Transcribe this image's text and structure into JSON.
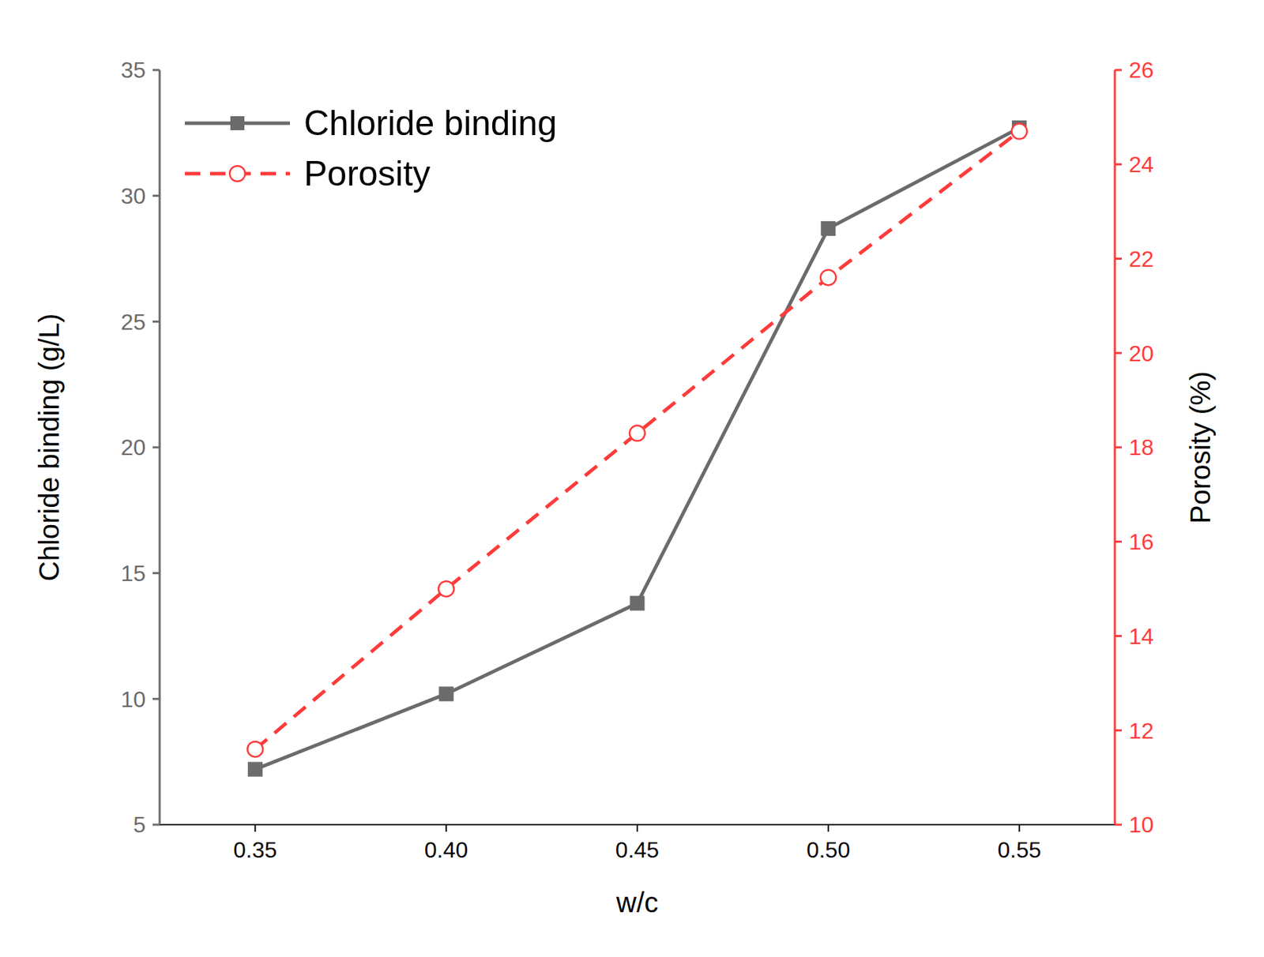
{
  "chart_data": {
    "type": "line",
    "x_label": "w/c",
    "y_label": "Chloride binding (g/L)",
    "y2_label": "Porosity (%)",
    "x": [
      0.35,
      0.4,
      0.45,
      0.5,
      0.55
    ],
    "series": [
      {
        "name": "Chloride binding",
        "color": "#6b6b6b",
        "marker": "square",
        "line_style": "solid",
        "values": [
          7.2,
          10.2,
          13.8,
          28.7,
          32.7
        ]
      },
      {
        "name": "Porosity",
        "color": "#ff3b3b",
        "marker": "hollow-circle",
        "line_style": "dashed",
        "axis": "y2",
        "values": [
          11.6,
          15.0,
          18.3,
          21.6,
          24.7
        ]
      }
    ],
    "xlim": [
      0.325,
      0.575
    ],
    "xticks": [
      0.35,
      {
        "value": 0.4,
        "label": "0.40"
      },
      0.45,
      {
        "value": 0.5,
        "label": "0.50"
      },
      0.55
    ],
    "ylim": [
      5,
      35
    ],
    "yticks": [
      5,
      10,
      15,
      20,
      25,
      30,
      35
    ],
    "y2lim": [
      10,
      26
    ],
    "y2ticks": [
      10,
      12,
      14,
      16,
      18,
      20,
      22,
      24,
      26
    ],
    "legend": "upper left",
    "grid": false
  }
}
